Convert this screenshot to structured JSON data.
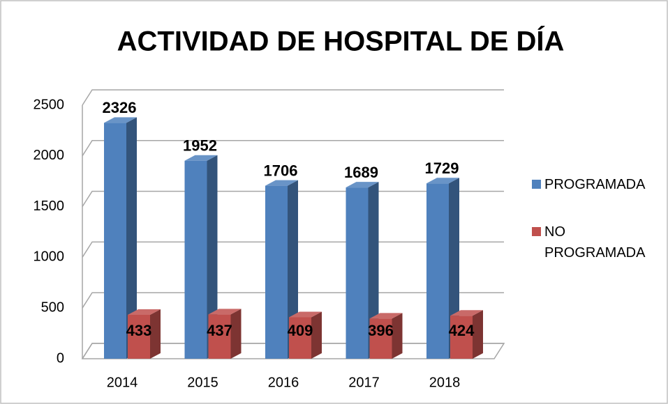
{
  "chart_data": {
    "type": "bar3d",
    "title": "ACTIVIDAD DE HOSPITAL DE DÍA",
    "categories": [
      "2014",
      "2015",
      "2016",
      "2017",
      "2018"
    ],
    "series": [
      {
        "name": "PROGRAMADA",
        "color": "#4f81bd",
        "values": [
          2326,
          1952,
          1706,
          1689,
          1729
        ]
      },
      {
        "name": "NO PROGRAMADA",
        "color": "#c0504d",
        "values": [
          433,
          437,
          409,
          396,
          424
        ]
      }
    ],
    "ylim": [
      0,
      2500
    ],
    "yticks": [
      0,
      500,
      1000,
      1500,
      2000,
      2500
    ],
    "grid": true,
    "legend": "right"
  }
}
